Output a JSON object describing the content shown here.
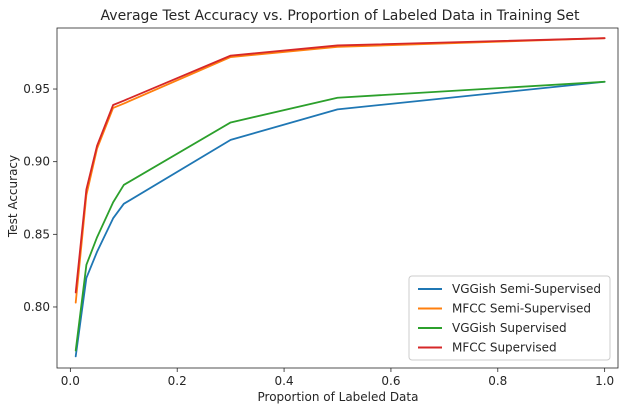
{
  "chart_data": {
    "type": "line",
    "title": "Average Test Accuracy vs. Proportion of Labeled Data in Training Set",
    "xlabel": "Proportion of Labeled Data",
    "ylabel": "Test Accuracy",
    "xlim": [
      -0.025,
      1.025
    ],
    "ylim": [
      0.758,
      0.992
    ],
    "xticks": [
      0.0,
      0.2,
      0.4,
      0.6,
      0.8,
      1.0
    ],
    "xtick_labels": [
      "0.0",
      "0.2",
      "0.4",
      "0.6",
      "0.8",
      "1.0"
    ],
    "yticks": [
      0.8,
      0.85,
      0.9,
      0.95
    ],
    "ytick_labels": [
      "0.80",
      "0.85",
      "0.90",
      "0.95"
    ],
    "grid": false,
    "legend_position": "lower-right",
    "series": [
      {
        "name": "VGGish Semi-Supervised",
        "color": "#1f77b4",
        "x": [
          0.01,
          0.03,
          0.05,
          0.08,
          0.1,
          0.3,
          0.5,
          1.0
        ],
        "y": [
          0.766,
          0.82,
          0.838,
          0.861,
          0.871,
          0.915,
          0.936,
          0.955
        ]
      },
      {
        "name": "MFCC Semi-Supervised",
        "color": "#ff7f0e",
        "x": [
          0.01,
          0.03,
          0.05,
          0.08,
          0.1,
          0.3,
          0.5,
          1.0
        ],
        "y": [
          0.803,
          0.877,
          0.909,
          0.937,
          0.94,
          0.972,
          0.979,
          0.985
        ]
      },
      {
        "name": "VGGish Supervised",
        "color": "#2ca02c",
        "x": [
          0.01,
          0.03,
          0.05,
          0.08,
          0.1,
          0.3,
          0.5,
          1.0
        ],
        "y": [
          0.77,
          0.829,
          0.848,
          0.872,
          0.884,
          0.927,
          0.944,
          0.955
        ]
      },
      {
        "name": "MFCC Supervised",
        "color": "#d62728",
        "x": [
          0.01,
          0.03,
          0.05,
          0.08,
          0.1,
          0.3,
          0.5,
          1.0
        ],
        "y": [
          0.81,
          0.881,
          0.911,
          0.939,
          0.942,
          0.973,
          0.98,
          0.985
        ]
      }
    ]
  }
}
